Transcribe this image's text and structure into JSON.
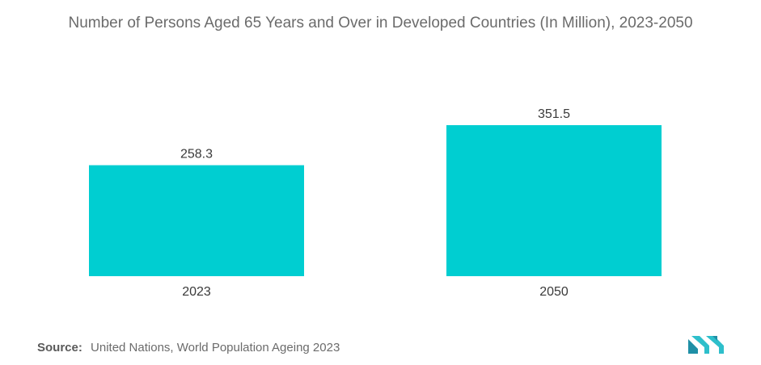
{
  "chart_data": {
    "type": "bar",
    "title": "Number of Persons Aged 65 Years and Over in Developed Countries (In Million), 2023-2050",
    "categories": [
      "2023",
      "2050"
    ],
    "values": [
      258.3,
      351.5
    ],
    "value_labels": [
      "258.3",
      "351.5"
    ],
    "xlabel": "",
    "ylabel": "",
    "ylim": [
      0,
      351.5
    ],
    "grid": false,
    "legend": "none",
    "bar_color": "#00CED1"
  },
  "source": {
    "label": "Source:",
    "text": "United Nations, World Population Ageing 2023"
  },
  "logo": {
    "icon": "mordor-logo-icon",
    "color": "#2EBFCB"
  }
}
